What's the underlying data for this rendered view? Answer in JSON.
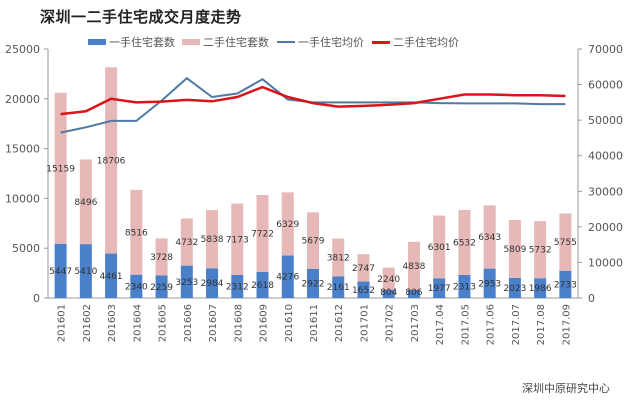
{
  "title": "深圳一二手住宅成交月度走势",
  "source": "深圳中原研究中心",
  "legend": [
    {
      "label": "一手住宅套数",
      "type": "bar",
      "color": "#4a7fc9"
    },
    {
      "label": "二手住宅套数",
      "type": "bar",
      "color": "#e6b8b7"
    },
    {
      "label": "一手住宅均价",
      "type": "line",
      "color": "#4f7aa6"
    },
    {
      "label": "二手住宅均价",
      "type": "line",
      "color": "#d9141a"
    }
  ],
  "chart_data": {
    "type": "bar",
    "title": "深圳一二手住宅成交月度走势",
    "xlabel": "",
    "ylabel": "",
    "categories": [
      "201601",
      "201602",
      "201603",
      "201604",
      "201605",
      "201606",
      "201607",
      "201608",
      "201609",
      "201610",
      "201611",
      "201612",
      "201701",
      "201702",
      "201703",
      "2017.04",
      "2017.05",
      "2017.06",
      "2017.07",
      "2017.08",
      "2017.09"
    ],
    "series": [
      {
        "name": "一手住宅套数",
        "type": "stacked-bar",
        "axis": "left",
        "color": "#4a7fc9",
        "values": [
          5447,
          5410,
          4461,
          2340,
          2259,
          3253,
          2984,
          2312,
          2618,
          4276,
          2922,
          2161,
          1652,
          804,
          806,
          1977,
          2313,
          2953,
          2023,
          1986,
          2733
        ]
      },
      {
        "name": "二手住宅套数",
        "type": "stacked-bar",
        "axis": "left",
        "color": "#e6b8b7",
        "values": [
          15159,
          8496,
          18706,
          8516,
          3728,
          4732,
          5838,
          7173,
          7722,
          6329,
          5679,
          3812,
          2747,
          2240,
          4838,
          6301,
          6532,
          6343,
          5809,
          5732,
          5755
        ]
      },
      {
        "name": "一手住宅均价",
        "type": "line",
        "axis": "right",
        "color": "#4f7aa6",
        "values": [
          46500,
          48000,
          49800,
          49800,
          55500,
          61800,
          56500,
          57500,
          61500,
          55800,
          55000,
          55000,
          55000,
          55000,
          55000,
          54800,
          54700,
          54700,
          54700,
          54500,
          54500
        ]
      },
      {
        "name": "二手住宅均价",
        "type": "line",
        "axis": "right",
        "color": "#d9141a",
        "values": [
          51700,
          52500,
          56000,
          55000,
          55200,
          55700,
          55300,
          56500,
          59300,
          56500,
          54800,
          53800,
          54000,
          54300,
          54800,
          56000,
          57200,
          57200,
          57000,
          57000,
          56800
        ]
      }
    ],
    "y_left": {
      "ylim": [
        0,
        25000
      ],
      "ticks": [
        0,
        5000,
        10000,
        15000,
        20000,
        25000
      ]
    },
    "y_right": {
      "ylim": [
        0,
        70000
      ],
      "ticks": [
        0,
        10000,
        20000,
        30000,
        40000,
        50000,
        60000,
        70000
      ]
    },
    "grid": false,
    "legend_position": "top"
  }
}
